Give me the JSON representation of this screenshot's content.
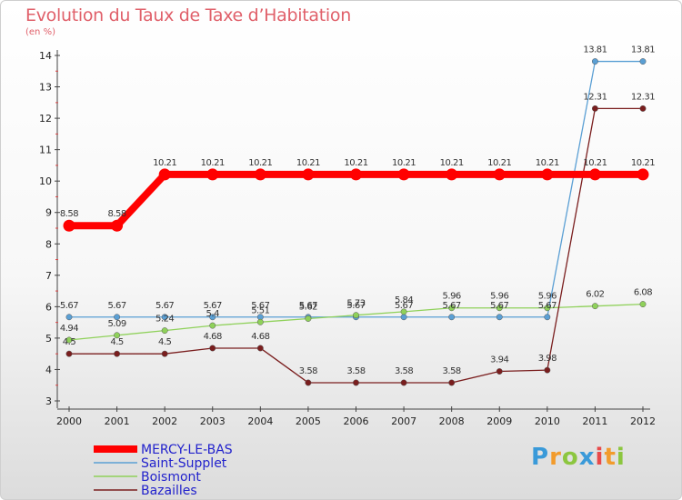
{
  "header": {
    "title": "Evolution du Taux de Taxe d’Habitation",
    "subtitle": "(en %)"
  },
  "logo_text": "Proxiti",
  "chart_data": {
    "type": "line",
    "x": [
      "2000",
      "2001",
      "2002",
      "2003",
      "2004",
      "2005",
      "2006",
      "2007",
      "2008",
      "2009",
      "2010",
      "2011",
      "2012"
    ],
    "ylim": [
      3,
      14
    ],
    "yticks": [
      3,
      4,
      5,
      6,
      7,
      8,
      9,
      10,
      11,
      12,
      13,
      14
    ],
    "grid": false,
    "legend_position": "bottom-left",
    "series": [
      {
        "name": "MERCY-LE-BAS",
        "color": "#ff0000",
        "values": [
          8.58,
          8.58,
          10.21,
          10.21,
          10.21,
          10.21,
          10.21,
          10.21,
          10.21,
          10.21,
          10.21,
          10.21,
          10.21
        ],
        "labels": [
          "8.58",
          "8.58",
          "10.21",
          "10.21",
          "10.21",
          "10.21",
          "10.21",
          "10.21",
          "10.21",
          "10.21",
          "10.21",
          "10.21",
          "10.21"
        ]
      },
      {
        "name": "Saint-Supplet",
        "color": "#5a9fd4",
        "values": [
          5.67,
          5.67,
          5.67,
          5.67,
          5.67,
          5.67,
          5.67,
          5.67,
          5.67,
          5.67,
          5.67,
          13.81,
          13.81
        ],
        "labels": [
          "5.67",
          "5.67",
          "5.67",
          "5.67",
          "5.67",
          "5.67",
          "5.67",
          "5.67",
          "5.67",
          "5.67",
          "5.67",
          "13.81",
          "13.81"
        ]
      },
      {
        "name": "Boismont",
        "color": "#8fd15a",
        "values": [
          4.94,
          5.09,
          5.24,
          5.4,
          5.51,
          5.62,
          5.73,
          5.84,
          5.96,
          5.96,
          5.96,
          6.02,
          6.08
        ],
        "labels": [
          "4.94",
          "5.09",
          "5.24",
          "5.4",
          "5.51",
          "5.62",
          "5.73",
          "5.84",
          "5.96",
          "5.96",
          "5.96",
          "6.02",
          "6.08"
        ]
      },
      {
        "name": "Bazailles",
        "color": "#7a1e1e",
        "values": [
          4.5,
          4.5,
          4.5,
          4.68,
          4.68,
          3.58,
          3.58,
          3.58,
          3.58,
          3.94,
          3.98,
          12.31,
          12.31
        ],
        "labels": [
          "4.5",
          "4.5",
          "4.5",
          "4.68",
          "4.68",
          "3.58",
          "3.58",
          "3.58",
          "3.58",
          "3.94",
          "3.98",
          "12.31",
          "12.31"
        ]
      }
    ]
  }
}
